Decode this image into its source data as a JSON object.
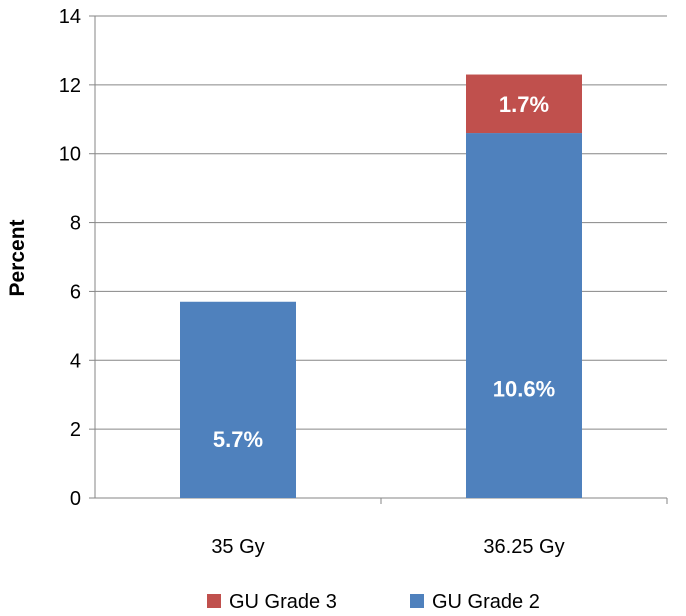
{
  "chart_data": {
    "type": "bar",
    "stacked": true,
    "title": "",
    "xlabel": "",
    "ylabel": "Percent",
    "ylim": [
      0,
      14
    ],
    "yticks": [
      0,
      2,
      4,
      6,
      8,
      10,
      12,
      14
    ],
    "ytick_labels": [
      "0",
      "2",
      "4",
      "6",
      "8",
      "10",
      "12",
      "14"
    ],
    "categories": [
      "35 Gy",
      "36.25 Gy"
    ],
    "series": [
      {
        "name": "GU Grade 2",
        "color": "#4F81BD",
        "values": [
          5.7,
          10.6
        ],
        "labels": [
          "5.7%",
          "10.6%"
        ]
      },
      {
        "name": "GU Grade 3",
        "color": "#C0504D",
        "values": [
          0,
          1.7
        ],
        "labels": [
          "",
          "1.7%"
        ]
      }
    ],
    "legend": {
      "position": "bottom",
      "entries": [
        {
          "name": "GU Grade 3",
          "color": "#C0504D"
        },
        {
          "name": "GU Grade 2",
          "color": "#4F81BD"
        }
      ]
    },
    "grid": true
  }
}
